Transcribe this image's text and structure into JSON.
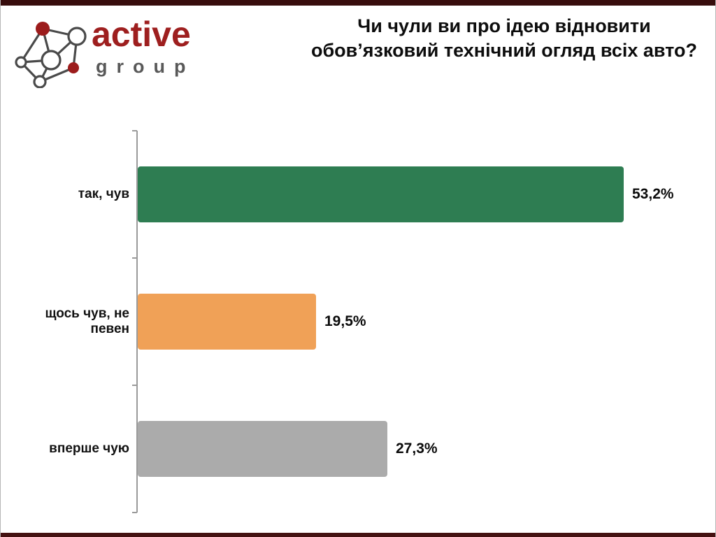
{
  "slide": {
    "background": "#ffffff",
    "top_bar_color": "#380d0d",
    "bottom_bar_color": "#451212",
    "edge_line_color": "#b5b5b5"
  },
  "logo": {
    "brand": "active",
    "sub": "group",
    "brand_color": "#9e1f1f",
    "sub_color": "#595959",
    "node_fill_color": "#9c1c1c",
    "line_color": "#4a4a4a"
  },
  "header": {
    "title": "Чи чули ви про ідею відновити обов’язковий технічний огляд всіх авто?"
  },
  "chart_data": {
    "type": "bar",
    "orientation": "horizontal",
    "title": "Чи чули ви про ідею відновити обов’язковий технічний огляд всіх авто?",
    "categories": [
      "так, чув",
      "щось чув, не певен",
      "вперше чую"
    ],
    "values": [
      53.2,
      19.5,
      27.3
    ],
    "value_labels": [
      "53,2%",
      "19,5%",
      "27,3%"
    ],
    "bar_colors": [
      "#2e7d52",
      "#f0a157",
      "#ababab"
    ],
    "axis_color": "#9a9a9a",
    "grid": false,
    "legend": false,
    "value_axis_visible": false,
    "xlim": [
      0,
      60
    ]
  }
}
